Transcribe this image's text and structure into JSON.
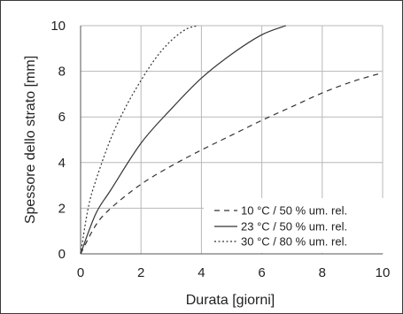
{
  "chart_data": {
    "type": "line",
    "title": "",
    "xlabel": "Durata [giorni]",
    "ylabel": "Spessore dello strato [mm]",
    "xlim": [
      0,
      10
    ],
    "ylim": [
      0,
      10
    ],
    "x_ticks": [
      0,
      2,
      4,
      6,
      8,
      10
    ],
    "y_ticks": [
      0,
      2,
      4,
      6,
      8,
      10
    ],
    "grid": true,
    "legend_position": "bottom-right",
    "series": [
      {
        "name": "10 °C / 50 % um. rel.",
        "line_style": "dashed",
        "color": "#333333",
        "x": [
          0,
          0.5,
          1,
          2,
          3,
          4,
          5,
          6,
          7,
          8,
          9,
          9.9
        ],
        "y": [
          0,
          1.25,
          2.0,
          3.05,
          3.85,
          4.55,
          5.2,
          5.85,
          6.45,
          7.05,
          7.55,
          7.9
        ]
      },
      {
        "name": "23 °C / 50 % um. rel.",
        "line_style": "solid",
        "color": "#333333",
        "x": [
          0,
          0.5,
          1,
          2,
          3,
          4,
          5,
          6,
          6.8
        ],
        "y": [
          0,
          1.75,
          2.8,
          4.85,
          6.35,
          7.7,
          8.75,
          9.6,
          10.0
        ]
      },
      {
        "name": "30 °C / 80 % um. rel.",
        "line_style": "dotted",
        "color": "#333333",
        "x": [
          0,
          0.25,
          0.5,
          1,
          1.5,
          2,
          2.5,
          3,
          3.5,
          3.9
        ],
        "y": [
          0,
          2.0,
          3.2,
          5.05,
          6.45,
          7.6,
          8.6,
          9.35,
          9.85,
          10.0
        ]
      }
    ]
  }
}
